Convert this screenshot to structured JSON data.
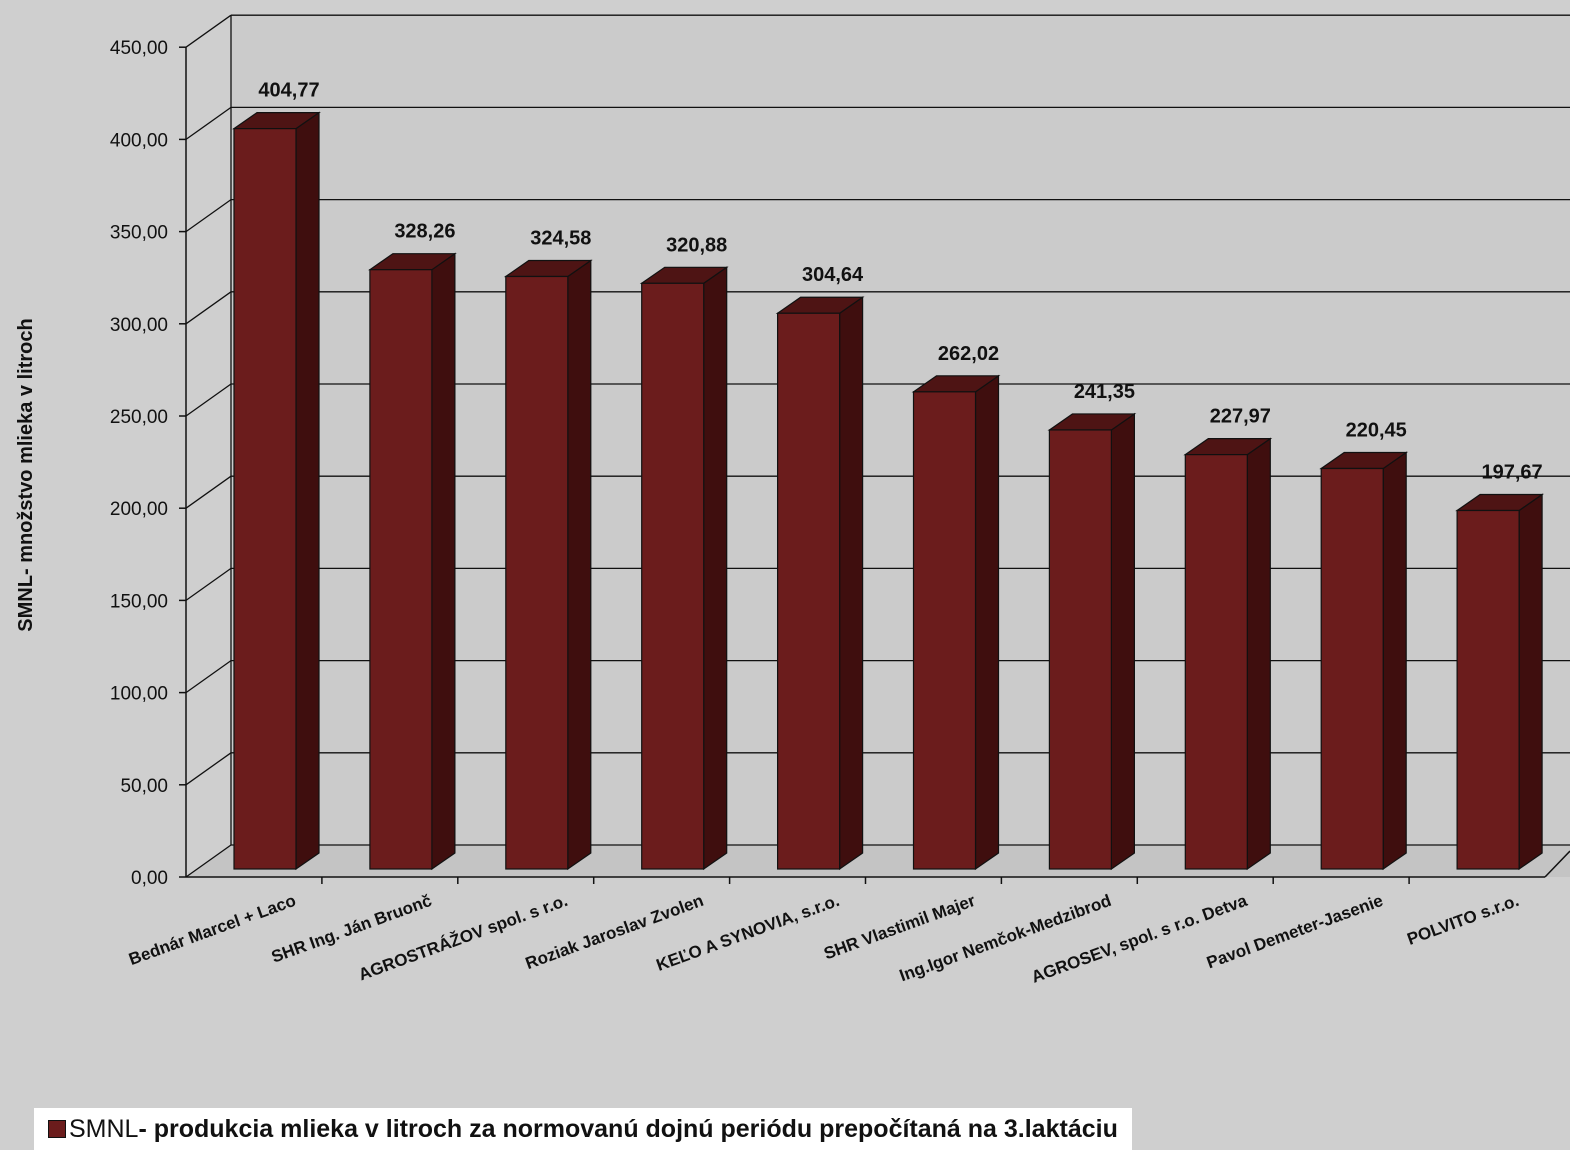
{
  "chart_data": {
    "type": "bar",
    "style": "3d-column",
    "categories": [
      "Bednár Marcel + Laco",
      "SHR Ing. Ján Bruonč",
      "AGROSTRÁŽOV spol. s r.o.",
      "Roziak Jaroslav Zvolen",
      "KEĽO A SYNOVIA, s.r.o.",
      "SHR Vlastimil Majer",
      "Ing.Igor Nemčok-Medzibrod",
      "AGROSEV, spol. s r.o. Detva",
      "Pavol Demeter-Jasenie",
      "POLVITO s.r.o."
    ],
    "values": [
      404.77,
      328.26,
      324.58,
      320.88,
      304.64,
      262.02,
      241.35,
      227.97,
      220.45,
      197.67
    ],
    "value_labels": [
      "404,77",
      "328,26",
      "324,58",
      "320,88",
      "304,64",
      "262,02",
      "241,35",
      "227,97",
      "220,45",
      "197,67"
    ],
    "ylabel": "SMNL- množstvo mlieka v litroch",
    "ylim": [
      0,
      450
    ],
    "yticks": [
      0,
      50,
      100,
      150,
      200,
      250,
      300,
      350,
      400,
      450
    ],
    "ytick_labels": [
      "0,00",
      "50,00",
      "100,00",
      "150,00",
      "200,00",
      "250,00",
      "300,00",
      "350,00",
      "400,00",
      "450,00"
    ],
    "grid": true,
    "legend": {
      "placement": "bottom-left",
      "prefix": "SMNL",
      "text": "- produkcia mlieka v litroch za normovanú dojnú periódu prepočítaná na 3.laktáciu"
    },
    "colors": {
      "bar_front": "#6b1c1c",
      "bar_side": "#3f0e0e",
      "bar_top": "#4e1414",
      "background": "#cfcfcf"
    }
  }
}
